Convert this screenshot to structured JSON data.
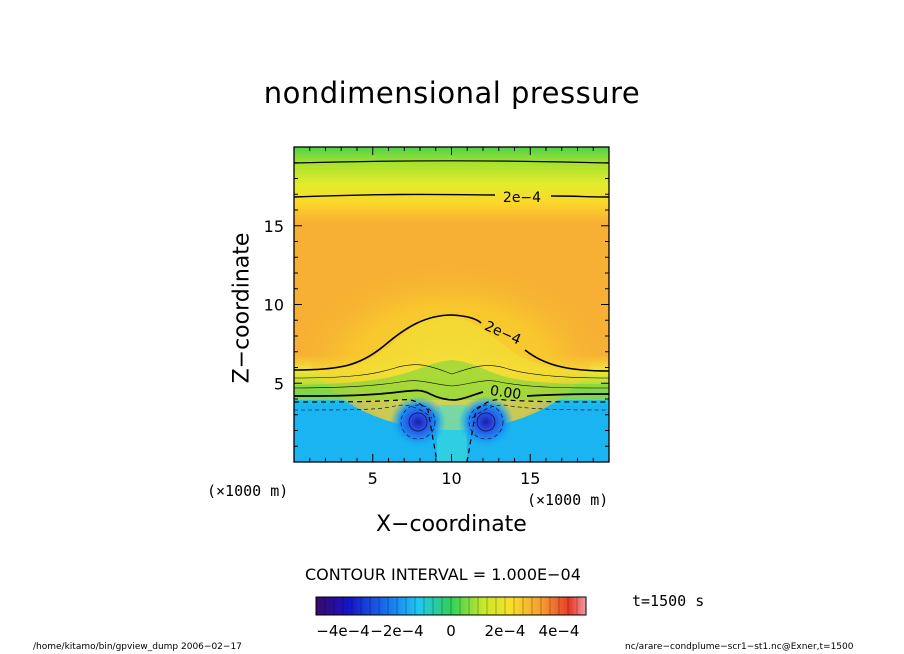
{
  "chart_data": {
    "type": "heatmap",
    "title": "nondimensional pressure",
    "xlabel": "X−coordinate",
    "ylabel": "Z−coordinate",
    "x_unit": "(×1000 m)",
    "y_unit": "(×1000 m)",
    "xlim": [
      0,
      20
    ],
    "ylim": [
      0,
      20
    ],
    "x_ticks": [
      5,
      10,
      15
    ],
    "y_ticks": [
      5,
      10,
      15
    ],
    "contour_interval_text": "CONTOUR INTERVAL = 1.000E−04",
    "contour_labels": [
      "2e−4",
      "2e−4",
      "0.00"
    ],
    "colorbar": {
      "range": [
        -0.0005,
        0.0005
      ],
      "tick_labels": [
        "−4e−4",
        "−2e−4",
        "0",
        "2e−4",
        "4e−4"
      ]
    },
    "time_text": "t=1500 s",
    "field_summary": {
      "top_layer_value": 0.00015,
      "upper_band_max": 0.00035,
      "dome_center_x": 10,
      "lower_layer_value": -0.0002,
      "vortex_min_value": -0.00045,
      "vortex_centers_x": [
        7.8,
        12.2
      ],
      "vortex_center_z": 2.5
    },
    "grid": false,
    "legend_placement": "bottom"
  },
  "footer": {
    "left": "/home/kitamo/bin/gpview_dump  2006−02−17",
    "right": "nc/arare−condplume−scr1−st1.nc@Exner,t=1500"
  }
}
